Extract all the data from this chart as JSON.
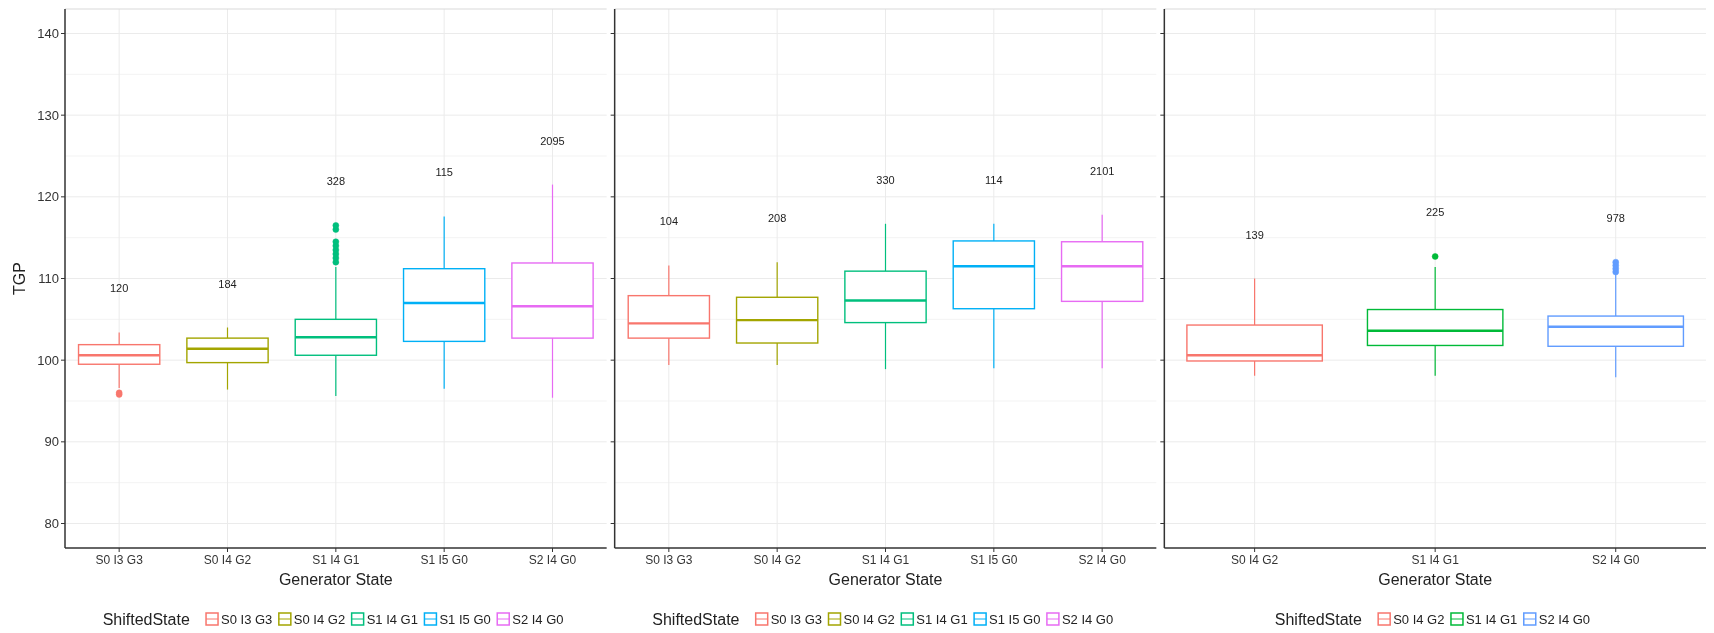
{
  "chart_data": [
    {
      "type": "box",
      "ylabel": "TGP",
      "xlabel": "Generator State",
      "legend_title": "ShiftedState",
      "grid": true,
      "ylim": [
        77,
        143
      ],
      "yticks": [
        80,
        90,
        100,
        110,
        120,
        130,
        140
      ],
      "categories": [
        "S0 I3 G3",
        "S0 I4 G2",
        "S1 I4 G1",
        "S1 I5 G0",
        "S2 I4 G0"
      ],
      "colors": [
        "#f8766d",
        "#a3a500",
        "#00bf7d",
        "#00b0f6",
        "#e76bf3"
      ],
      "boxes": [
        {
          "low": 96.6,
          "q1": 99.5,
          "median": 100.6,
          "q3": 101.9,
          "high": 103.4,
          "outliers": [
            95.8,
            96.0
          ]
        },
        {
          "low": 96.4,
          "q1": 99.7,
          "median": 101.4,
          "q3": 102.7,
          "high": 104.0
        },
        {
          "low": 95.6,
          "q1": 100.6,
          "median": 102.8,
          "q3": 105.0,
          "high": 111.4,
          "outliers": [
            112.0,
            112.5,
            113.0,
            113.5,
            114.0,
            114.5,
            116.0,
            116.5
          ]
        },
        {
          "low": 96.5,
          "q1": 102.3,
          "median": 107.0,
          "q3": 111.2,
          "high": 117.6
        },
        {
          "low": 95.4,
          "q1": 102.7,
          "median": 106.6,
          "q3": 111.9,
          "high": 121.5
        }
      ],
      "annotations": [
        "120",
        "184",
        "328",
        "115",
        "2095"
      ]
    },
    {
      "type": "box",
      "xlabel": "Generator State",
      "legend_title": "ShiftedState",
      "grid": true,
      "tick_labels": "x",
      "ylim": [
        77,
        143
      ],
      "yticks": [
        80,
        90,
        100,
        110,
        120,
        130,
        140
      ],
      "categories": [
        "S0 I3 G3",
        "S0 I4 G2",
        "S1 I4 G1",
        "S1 I5 G0",
        "S2 I4 G0"
      ],
      "colors": [
        "#f8766d",
        "#a3a500",
        "#00bf7d",
        "#00b0f6",
        "#e76bf3"
      ],
      "boxes": [
        {
          "low": 99.4,
          "q1": 102.7,
          "median": 104.5,
          "q3": 107.9,
          "high": 111.6
        },
        {
          "low": 99.4,
          "q1": 102.1,
          "median": 104.9,
          "q3": 107.7,
          "high": 112.0
        },
        {
          "low": 98.9,
          "q1": 104.6,
          "median": 107.3,
          "q3": 110.9,
          "high": 116.7
        },
        {
          "low": 99.0,
          "q1": 106.3,
          "median": 111.5,
          "q3": 114.6,
          "high": 116.7
        },
        {
          "low": 99.0,
          "q1": 107.2,
          "median": 111.5,
          "q3": 114.5,
          "high": 117.8
        }
      ],
      "annotations": [
        "104",
        "208",
        "330",
        "114",
        "2101"
      ]
    },
    {
      "type": "box",
      "xlabel": "Generator State",
      "legend_title": "ShiftedState",
      "grid": true,
      "tick_labels": "x",
      "ylim": [
        77,
        143
      ],
      "yticks": [
        80,
        90,
        100,
        110,
        120,
        130,
        140
      ],
      "categories": [
        "S0 I4 G2",
        "S1 I4 G1",
        "S2 I4 G0"
      ],
      "colors": [
        "#f8766d",
        "#00ba38",
        "#619cff"
      ],
      "boxes": [
        {
          "low": 98.1,
          "q1": 99.9,
          "median": 100.6,
          "q3": 104.3,
          "high": 110.0
        },
        {
          "low": 98.1,
          "q1": 101.8,
          "median": 103.6,
          "q3": 106.2,
          "high": 111.4,
          "outliers": [
            112.7
          ]
        },
        {
          "low": 97.9,
          "q1": 101.7,
          "median": 104.1,
          "q3": 105.4,
          "high": 110.5,
          "outliers": [
            110.8,
            111.2,
            111.6,
            112.0
          ]
        }
      ],
      "annotations": [
        "139",
        "225",
        "978"
      ]
    }
  ]
}
